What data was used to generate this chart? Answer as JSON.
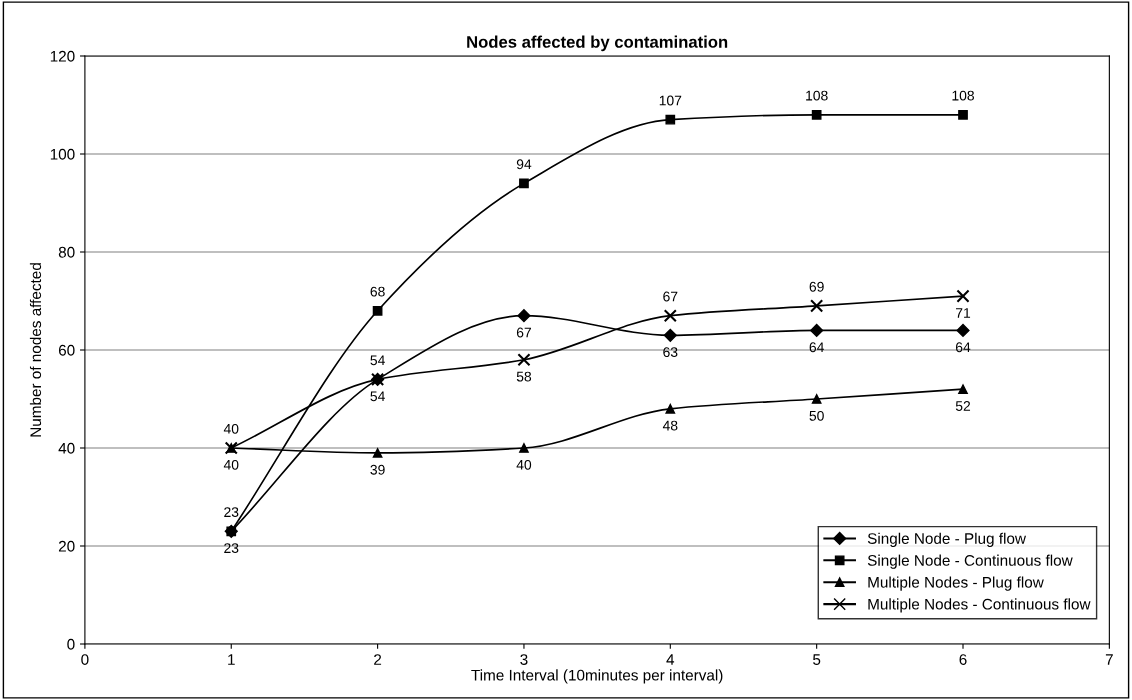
{
  "chart_data": {
    "type": "line",
    "title": "Nodes affected by contamination",
    "xlabel": "Time Interval (10minutes per interval)",
    "ylabel": "Number of nodes affected",
    "x": [
      1,
      2,
      3,
      4,
      5,
      6
    ],
    "series": [
      {
        "name": "Single Node - Plug flow",
        "color": "#000000",
        "marker": "diamond",
        "values": [
          23,
          54,
          67,
          63,
          64,
          64
        ]
      },
      {
        "name": "Single Node - Continuous flow",
        "color": "#000000",
        "marker": "square",
        "values": [
          23,
          68,
          94,
          107,
          108,
          108
        ]
      },
      {
        "name": "Multiple Nodes - Plug flow",
        "color": "#000000",
        "marker": "triangle",
        "values": [
          40,
          39,
          40,
          48,
          50,
          52
        ]
      },
      {
        "name": "Multiple Nodes - Continuous flow",
        "color": "#000000",
        "marker": "cross",
        "values": [
          40,
          54,
          58,
          67,
          69,
          71
        ]
      }
    ],
    "xlim": [
      0,
      7
    ],
    "xticks": [
      0,
      1,
      2,
      3,
      4,
      5,
      6,
      7
    ],
    "ylim": [
      0,
      120
    ],
    "yticks": [
      0,
      20,
      40,
      60,
      80,
      100,
      120
    ],
    "grid": "y",
    "legend": "bottom right",
    "data_labels": true,
    "line_style": "solid"
  }
}
